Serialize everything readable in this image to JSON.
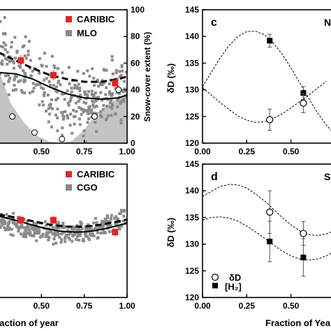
{
  "figure": {
    "colors": {
      "caribic": "#e8231f",
      "station": "#8a8a8a",
      "snow": "#c4c4c4",
      "ink": "#000000"
    }
  },
  "chart_data": [
    {
      "type": "scatter",
      "panel_label": "",
      "xlabel": "",
      "y2label": "Snow-cover extent (%)",
      "xlim": [
        0.25,
        1.0
      ],
      "y2lim": [
        0,
        100
      ],
      "xticks": [
        "0.50",
        "0.75",
        "1.00"
      ],
      "y2ticks": [
        "0",
        "20",
        "40",
        "60",
        "80",
        "100"
      ],
      "legend": [
        "CARIBIC",
        "MLO"
      ],
      "legend_position": "top-right",
      "series": [
        {
          "name": "CARIBIC",
          "x": [
            0.38,
            0.57,
            0.93
          ],
          "y": [
            62,
            51,
            45
          ]
        },
        {
          "name": "MLO",
          "x_range": [
            0.25,
            1.0
          ],
          "y_range": [
            20,
            75
          ]
        },
        {
          "name": "Snow-cover extent",
          "type": "area",
          "x": [
            0.25,
            0.32,
            0.4,
            0.48,
            0.55,
            0.62,
            0.68,
            0.75,
            0.82,
            0.9,
            1.0
          ],
          "y": [
            55,
            30,
            15,
            5,
            1,
            0,
            2,
            10,
            22,
            30,
            38
          ]
        },
        {
          "name": "",
          "type": "line",
          "style": "dashed",
          "x": [
            0.25,
            0.35,
            0.45,
            0.55,
            0.65,
            0.75,
            0.85,
            0.95,
            1.0
          ],
          "y": [
            68,
            62,
            56,
            51,
            48,
            46,
            46,
            48,
            50
          ]
        },
        {
          "name": "",
          "type": "line",
          "style": "solid",
          "x": [
            0.25,
            0.35,
            0.45,
            0.55,
            0.65,
            0.75,
            0.85,
            0.95,
            1.0
          ],
          "y": [
            53,
            52,
            48,
            42,
            37,
            34,
            33,
            34,
            36
          ]
        },
        {
          "name": "",
          "type": "scatter",
          "marker": "open-circle",
          "x": [
            0.33,
            0.46,
            0.62,
            0.81,
            0.95
          ],
          "y": [
            20,
            8,
            3,
            20,
            40
          ]
        }
      ]
    },
    {
      "type": "scatter",
      "panel_label": "",
      "xlabel": "Fraction of year",
      "xlim": [
        0.25,
        1.0
      ],
      "xticks": [
        "0.50",
        "0.75",
        "1.00"
      ],
      "legend": [
        "CARIBIC",
        "CGO"
      ],
      "legend_position": "top-right",
      "series": [
        {
          "name": "CARIBIC",
          "x": [
            0.38,
            0.57,
            0.93
          ],
          "y": [
            0.58,
            0.58,
            0.49
          ]
        },
        {
          "name": "CGO",
          "x_range": [
            0.25,
            1.0
          ]
        },
        {
          "name": "",
          "type": "line",
          "style": "dashed"
        },
        {
          "name": "",
          "type": "line",
          "style": "solid"
        }
      ]
    },
    {
      "type": "line",
      "panel_label": "c",
      "panel_tag": "N",
      "xlabel": "Fraction of Year",
      "ylabel": "δD (‰)",
      "xlim": [
        0,
        0.75
      ],
      "ylim": [
        120,
        145
      ],
      "xticks": [
        "0.00",
        "0.25",
        "0.50"
      ],
      "yticks": [
        "120",
        "125",
        "130",
        "135",
        "140",
        "145"
      ],
      "series": [
        {
          "name": "",
          "marker": "filled-square",
          "x": [
            0.38,
            0.57
          ],
          "y": [
            139.2,
            129.4
          ],
          "err": [
            1.2,
            1.2
          ]
        },
        {
          "name": "",
          "marker": "open-circle",
          "x": [
            0.38,
            0.57
          ],
          "y": [
            124.4,
            127.5
          ],
          "err": [
            2.0,
            1.8
          ]
        },
        {
          "name": "",
          "style": "dashed",
          "x": [
            0,
            0.05,
            0.1,
            0.15,
            0.2,
            0.25,
            0.3,
            0.35,
            0.4,
            0.45,
            0.5,
            0.55,
            0.6,
            0.65,
            0.7,
            0.75
          ],
          "y": [
            130.6,
            133.3,
            136.0,
            138.3,
            140.0,
            140.9,
            141.0,
            140.3,
            138.8,
            136.7,
            134.1,
            131.3,
            128.4,
            125.7,
            123.4,
            121.5
          ]
        },
        {
          "name": "",
          "style": "dashed",
          "x": [
            0,
            0.05,
            0.1,
            0.15,
            0.2,
            0.25,
            0.3,
            0.35,
            0.4,
            0.45,
            0.5,
            0.55,
            0.6,
            0.65,
            0.7
          ],
          "y": [
            130.4,
            129.0,
            127.6,
            126.3,
            125.1,
            124.3,
            123.9,
            124.0,
            124.6,
            125.5,
            126.6,
            127.8,
            129.0,
            130.3,
            131.6
          ]
        }
      ]
    },
    {
      "type": "line",
      "panel_label": "d",
      "panel_tag": "S",
      "xlabel": "Fraction of Year",
      "ylabel": "δD (‰)",
      "xlim": [
        0,
        0.75
      ],
      "ylim": [
        120,
        145
      ],
      "xticks": [
        "0.00",
        "0.25",
        "0.50"
      ],
      "yticks": [
        "120",
        "125",
        "130",
        "135",
        "140",
        "145"
      ],
      "legend": [
        "δD",
        "[H₂]"
      ],
      "legend_position": "bottom-left",
      "series": [
        {
          "name": "δD",
          "marker": "open-circle",
          "x": [
            0.38,
            0.57
          ],
          "y": [
            136.0,
            132.0
          ],
          "err": [
            4.0,
            2.2
          ]
        },
        {
          "name": "[H₂]",
          "marker": "filled-square",
          "x": [
            0.38,
            0.57
          ],
          "y": [
            130.5,
            127.5
          ],
          "err": [
            3.8,
            3.5
          ]
        },
        {
          "name": "",
          "style": "dashed",
          "x": [
            0,
            0.05,
            0.1,
            0.15,
            0.2,
            0.25,
            0.3,
            0.35,
            0.4,
            0.45,
            0.5,
            0.55,
            0.6,
            0.65,
            0.7,
            0.75
          ],
          "y": [
            138.9,
            139.9,
            140.8,
            141.2,
            141.1,
            140.5,
            139.4,
            138.1,
            136.6,
            135.0,
            133.6,
            132.5,
            131.8,
            131.6,
            131.9,
            132.6
          ]
        },
        {
          "name": "",
          "style": "dashed",
          "x": [
            0,
            0.05,
            0.1,
            0.15,
            0.2,
            0.25,
            0.3,
            0.35,
            0.4,
            0.45,
            0.5,
            0.55,
            0.6,
            0.65,
            0.7,
            0.75
          ],
          "y": [
            134.5,
            135.0,
            135.1,
            134.9,
            134.3,
            133.4,
            132.3,
            131.1,
            129.9,
            128.7,
            127.8,
            127.2,
            127.0,
            127.2,
            127.8,
            128.7
          ]
        }
      ]
    }
  ]
}
